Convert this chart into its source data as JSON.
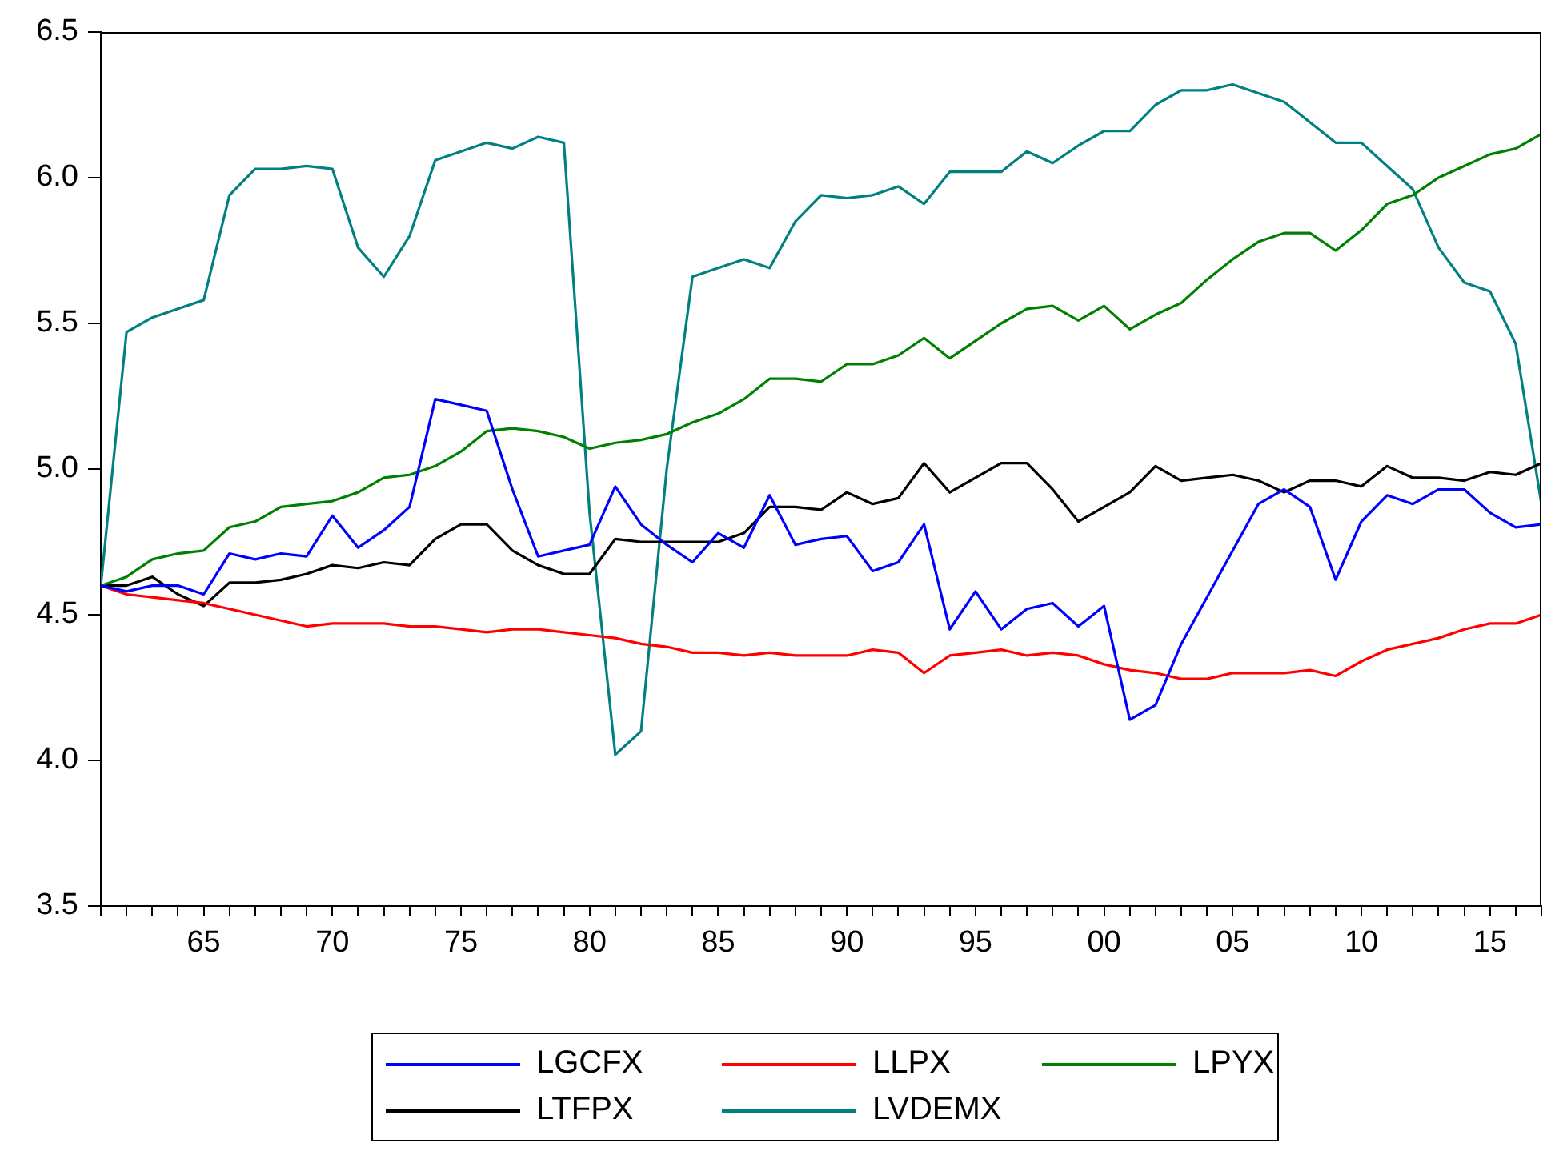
{
  "chart_data": {
    "type": "line",
    "x": [
      1961,
      1962,
      1963,
      1964,
      1965,
      1966,
      1967,
      1968,
      1969,
      1970,
      1971,
      1972,
      1973,
      1974,
      1975,
      1976,
      1977,
      1978,
      1979,
      1980,
      1981,
      1982,
      1983,
      1984,
      1985,
      1986,
      1987,
      1988,
      1989,
      1990,
      1991,
      1992,
      1993,
      1994,
      1995,
      1996,
      1997,
      1998,
      1999,
      2000,
      2001,
      2002,
      2003,
      2004,
      2005,
      2006,
      2007,
      2008,
      2009,
      2010,
      2011,
      2012,
      2013,
      2014,
      2015,
      2016,
      2017
    ],
    "series": [
      {
        "name": "LGCFX",
        "color": "#0000ff",
        "values": [
          4.6,
          4.58,
          4.6,
          4.6,
          4.57,
          4.71,
          4.69,
          4.71,
          4.7,
          4.84,
          4.73,
          4.79,
          4.87,
          5.24,
          5.22,
          5.2,
          4.93,
          4.7,
          4.72,
          4.74,
          4.94,
          4.81,
          4.74,
          4.68,
          4.78,
          4.73,
          4.91,
          4.74,
          4.76,
          4.77,
          4.65,
          4.68,
          4.81,
          4.45,
          4.58,
          4.45,
          4.52,
          4.54,
          4.46,
          4.53,
          4.14,
          4.19,
          4.4,
          4.56,
          4.72,
          4.88,
          4.93,
          4.87,
          4.62,
          4.82,
          4.91,
          4.88,
          4.93,
          4.93,
          4.85,
          4.8,
          4.81
        ]
      },
      {
        "name": "LLPX",
        "color": "#ff0000",
        "values": [
          4.6,
          4.57,
          4.56,
          4.55,
          4.54,
          4.52,
          4.5,
          4.48,
          4.46,
          4.47,
          4.47,
          4.47,
          4.46,
          4.46,
          4.45,
          4.44,
          4.45,
          4.45,
          4.44,
          4.43,
          4.42,
          4.4,
          4.39,
          4.37,
          4.37,
          4.36,
          4.37,
          4.36,
          4.36,
          4.36,
          4.38,
          4.37,
          4.3,
          4.36,
          4.37,
          4.38,
          4.36,
          4.37,
          4.36,
          4.33,
          4.31,
          4.3,
          4.28,
          4.28,
          4.3,
          4.3,
          4.3,
          4.31,
          4.29,
          4.34,
          4.38,
          4.4,
          4.42,
          4.45,
          4.47,
          4.47,
          4.5
        ]
      },
      {
        "name": "LPYX",
        "color": "#008000",
        "values": [
          4.6,
          4.63,
          4.69,
          4.71,
          4.72,
          4.8,
          4.82,
          4.87,
          4.88,
          4.89,
          4.92,
          4.97,
          4.98,
          5.01,
          5.06,
          5.13,
          5.14,
          5.13,
          5.11,
          5.07,
          5.09,
          5.1,
          5.12,
          5.16,
          5.19,
          5.24,
          5.31,
          5.31,
          5.3,
          5.36,
          5.36,
          5.39,
          5.45,
          5.38,
          5.44,
          5.5,
          5.55,
          5.56,
          5.51,
          5.56,
          5.48,
          5.53,
          5.57,
          5.65,
          5.72,
          5.78,
          5.81,
          5.81,
          5.75,
          5.82,
          5.91,
          5.94,
          6.0,
          6.04,
          6.08,
          6.1,
          6.15
        ]
      },
      {
        "name": "LTFPX",
        "color": "#000000",
        "values": [
          4.6,
          4.6,
          4.63,
          4.57,
          4.53,
          4.61,
          4.61,
          4.62,
          4.64,
          4.67,
          4.66,
          4.68,
          4.67,
          4.76,
          4.81,
          4.81,
          4.72,
          4.67,
          4.64,
          4.64,
          4.76,
          4.75,
          4.75,
          4.75,
          4.75,
          4.78,
          4.87,
          4.87,
          4.86,
          4.92,
          4.88,
          4.9,
          5.02,
          4.92,
          4.97,
          5.02,
          5.02,
          4.93,
          4.82,
          4.87,
          4.92,
          5.01,
          4.96,
          4.97,
          4.98,
          4.96,
          4.92,
          4.96,
          4.96,
          4.94,
          5.01,
          4.97,
          4.97,
          4.96,
          4.99,
          4.98,
          5.02
        ]
      },
      {
        "name": "LVDEMX",
        "color": "#008080",
        "values": [
          4.6,
          5.47,
          5.52,
          5.55,
          5.58,
          5.94,
          6.03,
          6.03,
          6.04,
          6.03,
          5.76,
          5.66,
          5.8,
          6.06,
          6.09,
          6.12,
          6.1,
          6.14,
          6.12,
          4.85,
          4.02,
          4.1,
          5.0,
          5.66,
          5.69,
          5.72,
          5.69,
          5.85,
          5.94,
          5.93,
          5.94,
          5.97,
          5.91,
          6.02,
          6.02,
          6.02,
          6.09,
          6.05,
          6.11,
          6.16,
          6.16,
          6.25,
          6.3,
          6.3,
          6.32,
          6.29,
          6.26,
          6.19,
          6.12,
          6.12,
          6.04,
          5.96,
          5.76,
          5.64,
          5.61,
          5.43,
          4.88
        ]
      }
    ],
    "xlim": [
      1961,
      2017
    ],
    "xticks": [
      {
        "value": 1961,
        "label": null
      },
      {
        "value": 1962,
        "label": null
      },
      {
        "value": 1963,
        "label": null
      },
      {
        "value": 1964,
        "label": null
      },
      {
        "value": 1965,
        "label": "65"
      },
      {
        "value": 1966,
        "label": null
      },
      {
        "value": 1967,
        "label": null
      },
      {
        "value": 1968,
        "label": null
      },
      {
        "value": 1969,
        "label": null
      },
      {
        "value": 1970,
        "label": "70"
      },
      {
        "value": 1971,
        "label": null
      },
      {
        "value": 1972,
        "label": null
      },
      {
        "value": 1973,
        "label": null
      },
      {
        "value": 1974,
        "label": null
      },
      {
        "value": 1975,
        "label": "75"
      },
      {
        "value": 1976,
        "label": null
      },
      {
        "value": 1977,
        "label": null
      },
      {
        "value": 1978,
        "label": null
      },
      {
        "value": 1979,
        "label": null
      },
      {
        "value": 1980,
        "label": "80"
      },
      {
        "value": 1981,
        "label": null
      },
      {
        "value": 1982,
        "label": null
      },
      {
        "value": 1983,
        "label": null
      },
      {
        "value": 1984,
        "label": null
      },
      {
        "value": 1985,
        "label": "85"
      },
      {
        "value": 1986,
        "label": null
      },
      {
        "value": 1987,
        "label": null
      },
      {
        "value": 1988,
        "label": null
      },
      {
        "value": 1989,
        "label": null
      },
      {
        "value": 1990,
        "label": "90"
      },
      {
        "value": 1991,
        "label": null
      },
      {
        "value": 1992,
        "label": null
      },
      {
        "value": 1993,
        "label": null
      },
      {
        "value": 1994,
        "label": null
      },
      {
        "value": 1995,
        "label": "95"
      },
      {
        "value": 1996,
        "label": null
      },
      {
        "value": 1997,
        "label": null
      },
      {
        "value": 1998,
        "label": null
      },
      {
        "value": 1999,
        "label": null
      },
      {
        "value": 2000,
        "label": "00"
      },
      {
        "value": 2001,
        "label": null
      },
      {
        "value": 2002,
        "label": null
      },
      {
        "value": 2003,
        "label": null
      },
      {
        "value": 2004,
        "label": null
      },
      {
        "value": 2005,
        "label": "05"
      },
      {
        "value": 2006,
        "label": null
      },
      {
        "value": 2007,
        "label": null
      },
      {
        "value": 2008,
        "label": null
      },
      {
        "value": 2009,
        "label": null
      },
      {
        "value": 2010,
        "label": "10"
      },
      {
        "value": 2011,
        "label": null
      },
      {
        "value": 2012,
        "label": null
      },
      {
        "value": 2013,
        "label": null
      },
      {
        "value": 2014,
        "label": null
      },
      {
        "value": 2015,
        "label": "15"
      },
      {
        "value": 2016,
        "label": null
      },
      {
        "value": 2017,
        "label": null
      }
    ],
    "ylim": [
      3.5,
      6.5
    ],
    "yticks": [
      3.5,
      {
        "value": 4,
        "label": "4.0"
      },
      4.5,
      {
        "value": 5,
        "label": "5.0"
      },
      5.5,
      {
        "value": 6,
        "label": "6.0"
      },
      6.5
    ],
    "grid": false,
    "legend": "bottom",
    "marker": "none",
    "line_style": "solid"
  }
}
